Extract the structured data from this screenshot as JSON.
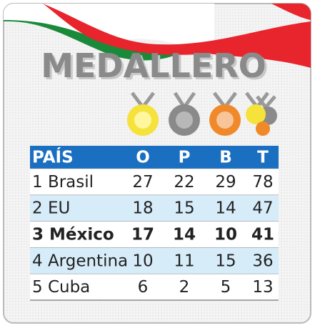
{
  "title": "MEDALLERO",
  "table": {
    "header": [
      "PAÍS",
      "O",
      "P",
      "B",
      "T"
    ],
    "rows": [
      [
        "1 Brasil",
        "27",
        "22",
        "29",
        "78"
      ],
      [
        "2 EU",
        "18",
        "15",
        "14",
        "47"
      ],
      [
        "3 México",
        "17",
        "14",
        "10",
        "41"
      ],
      [
        "4 Argentina",
        "10",
        "11",
        "15",
        "36"
      ],
      [
        "5 Cuba",
        "6",
        "2",
        "5",
        "13"
      ]
    ],
    "highlight_row": 2
  }
}
